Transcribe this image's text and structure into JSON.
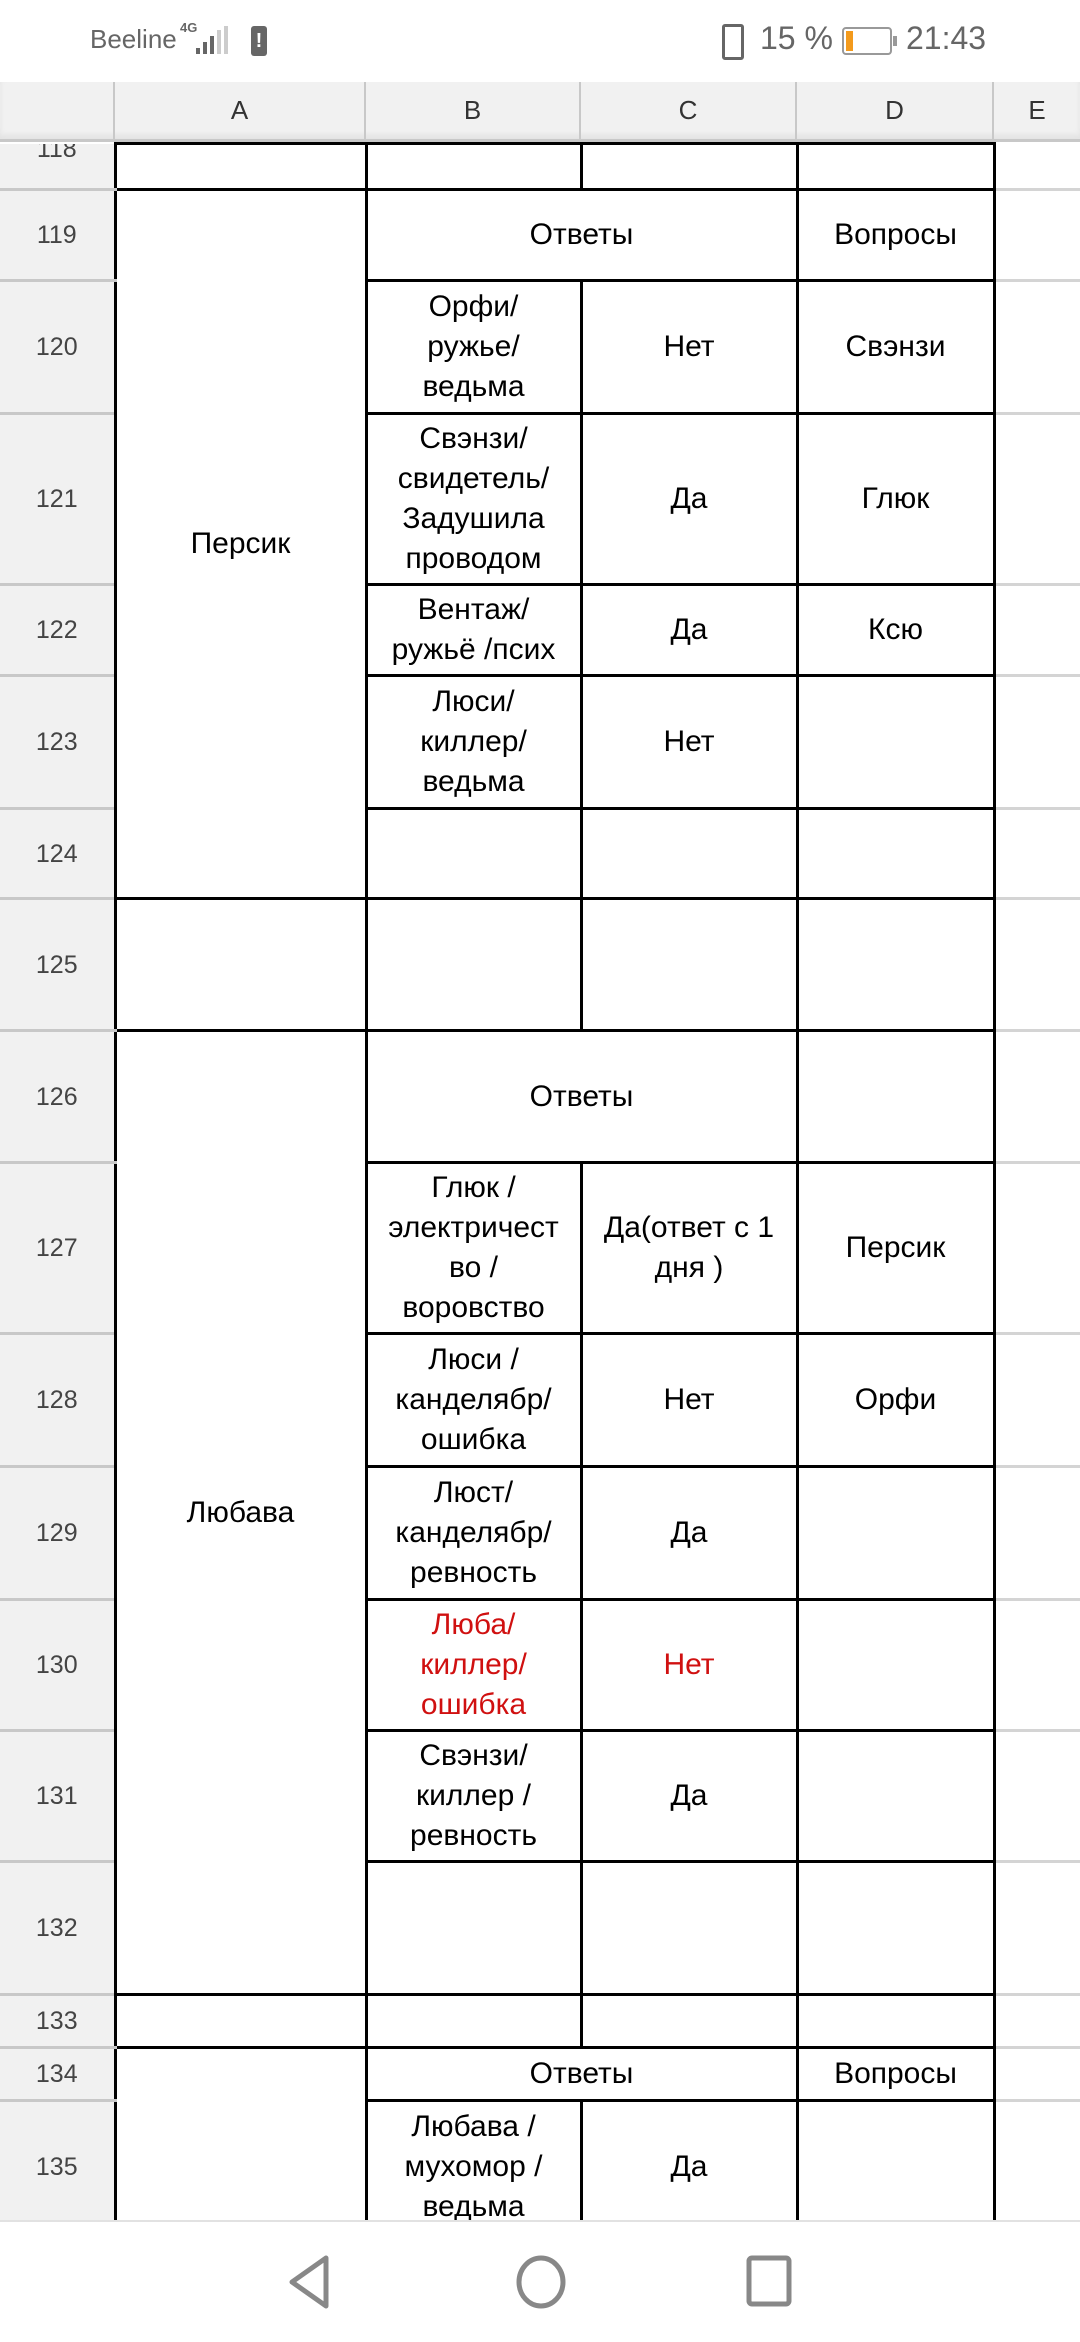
{
  "status_bar": {
    "carrier": "Beeline",
    "network": "4G",
    "battery_percent": "15 %",
    "battery_level": 15,
    "time": "21:43",
    "battery_color": "#f39a1c"
  },
  "columns": [
    "A",
    "B",
    "C",
    "D",
    "E"
  ],
  "rows": {
    "r118": "118",
    "r119": "119",
    "r120": "120",
    "r121": "121",
    "r122": "122",
    "r123": "123",
    "r124": "124",
    "r125": "125",
    "r126": "126",
    "r127": "127",
    "r128": "128",
    "r129": "129",
    "r130": "130",
    "r131": "131",
    "r132": "132",
    "r133": "133",
    "r134": "134",
    "r135": "135"
  },
  "cells": {
    "a119": "Персик",
    "b119": "Ответы",
    "d119": "Вопросы",
    "b120": "Орфи/\nружье/\nведьма",
    "c120": "Нет",
    "d120": "Свэнзи",
    "b121": "Свэнзи/\nсвидетель/\nЗадушила\nпроводом",
    "c121": "Да",
    "d121": "Глюк",
    "b122": "Вентаж/\nружьё /псих",
    "c122": "Да",
    "d122": "Ксю",
    "b123": "Люси/\nкиллер/\nведьма",
    "c123": "Нет",
    "a126": "Любава",
    "b126": "Ответы",
    "b127": "Глюк /\nэлектричест\nво /\nворовство",
    "c127": "Да(ответ с 1\nдня )",
    "d127": "Персик",
    "b128": "Люси /\nканделябр/\nошибка",
    "c128": "Нет",
    "d128": "Орфи",
    "b129": "Люст/\nканделябр/\nревность",
    "c129": "Да",
    "b130": "Люба/\nкиллер/\nошибка",
    "c130": "Нет",
    "b131": "Свэнзи/\nкиллер /\nревность",
    "c131": "Да",
    "b134": "Ответы",
    "d134": "Вопросы",
    "b135": "Любава /\nмухомор /\nведьма",
    "c135": "Да"
  },
  "highlight_color": "#d01010"
}
